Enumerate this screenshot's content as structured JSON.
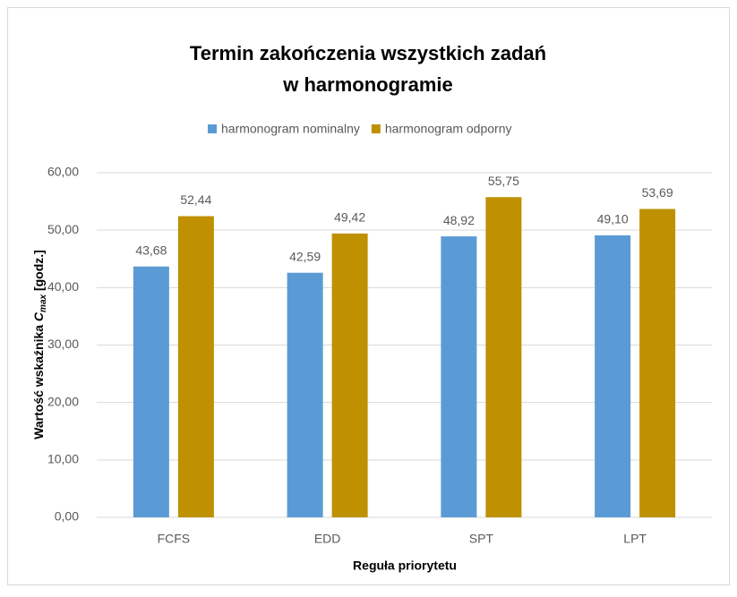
{
  "chart_data": {
    "type": "bar",
    "title": [
      "Termin zakończenia wszystkich zadań",
      "w harmonogramie"
    ],
    "y_label": {
      "text": "Wartość wskaźnika",
      "symbol": "C",
      "subscript": "max",
      "unit": "[godz.]"
    },
    "x_label": "Reguła priorytetu",
    "categories": [
      "FCFS",
      "EDD",
      "SPT",
      "LPT"
    ],
    "series": [
      {
        "name": "harmonogram nominalny",
        "color": "#5b9bd5",
        "values": [
          43.68,
          42.59,
          48.92,
          49.1
        ],
        "value_labels": [
          "43,68",
          "42,59",
          "48,92",
          "49,10"
        ]
      },
      {
        "name": "harmonogram odporny",
        "color": "#bf9000",
        "values": [
          52.44,
          49.42,
          55.75,
          53.69
        ],
        "value_labels": [
          "52,44",
          "49,42",
          "55,75",
          "53,69"
        ]
      }
    ],
    "ylim": [
      0,
      60
    ],
    "yticks": [
      {
        "value": 0,
        "label": "0,00"
      },
      {
        "value": 10,
        "label": "10,00"
      },
      {
        "value": 20,
        "label": "20,00"
      },
      {
        "value": 30,
        "label": "30,00"
      },
      {
        "value": 40,
        "label": "40,00"
      },
      {
        "value": 50,
        "label": "50,00"
      },
      {
        "value": 60,
        "label": "60,00"
      }
    ],
    "grid": true,
    "legend": "top"
  }
}
